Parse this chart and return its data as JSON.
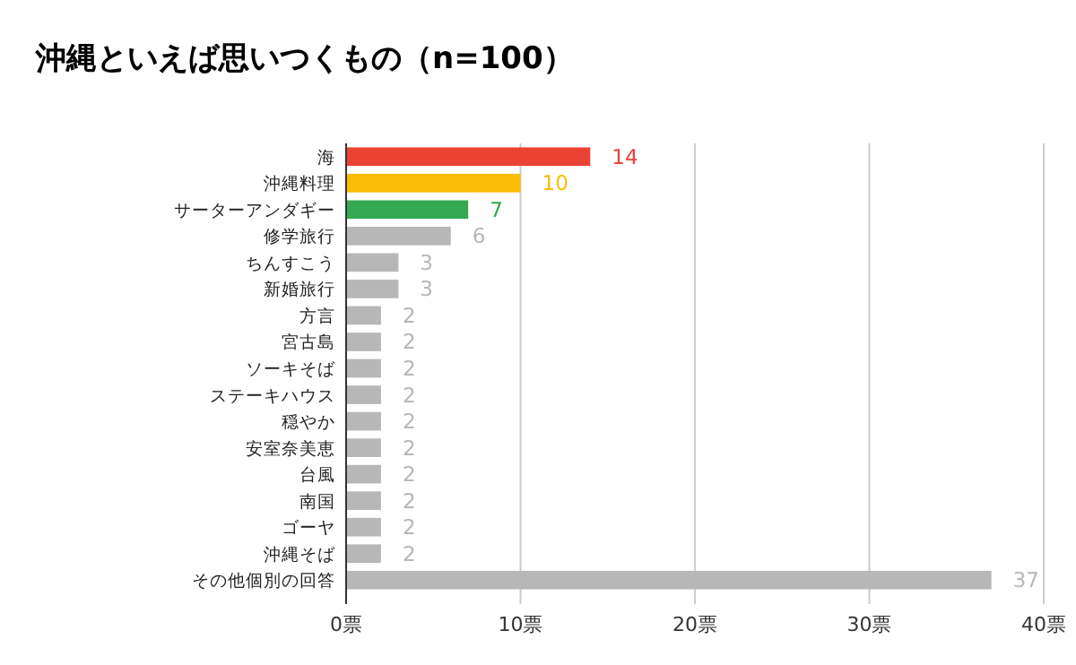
{
  "chart_data": {
    "type": "bar",
    "orientation": "horizontal",
    "title": "沖縄といえば思いつくもの（n=100）",
    "categories": [
      "海",
      "沖縄料理",
      "サーターアンダギー",
      "修学旅行",
      "ちんすこう",
      "新婚旅行",
      "方言",
      "宮古島",
      "ソーキそば",
      "ステーキハウス",
      "穏やか",
      "安室奈美恵",
      "台風",
      "南国",
      "ゴーヤ",
      "沖縄そば",
      "その他個別の回答"
    ],
    "values": [
      14,
      10,
      7,
      6,
      3,
      3,
      2,
      2,
      2,
      2,
      2,
      2,
      2,
      2,
      2,
      2,
      37
    ],
    "colors": [
      "#ea4335",
      "#fbbc04",
      "#34a853",
      "#b7b7b7",
      "#b7b7b7",
      "#b7b7b7",
      "#b7b7b7",
      "#b7b7b7",
      "#b7b7b7",
      "#b7b7b7",
      "#b7b7b7",
      "#b7b7b7",
      "#b7b7b7",
      "#b7b7b7",
      "#b7b7b7",
      "#b7b7b7",
      "#b7b7b7"
    ],
    "xlim": [
      0,
      40
    ],
    "xticks": [
      {
        "value": 0,
        "label": "0票"
      },
      {
        "value": 10,
        "label": "10票"
      },
      {
        "value": 20,
        "label": "20票"
      },
      {
        "value": 30,
        "label": "30票"
      },
      {
        "value": 40,
        "label": "40票"
      }
    ],
    "grid": "x",
    "data_labels": true
  }
}
